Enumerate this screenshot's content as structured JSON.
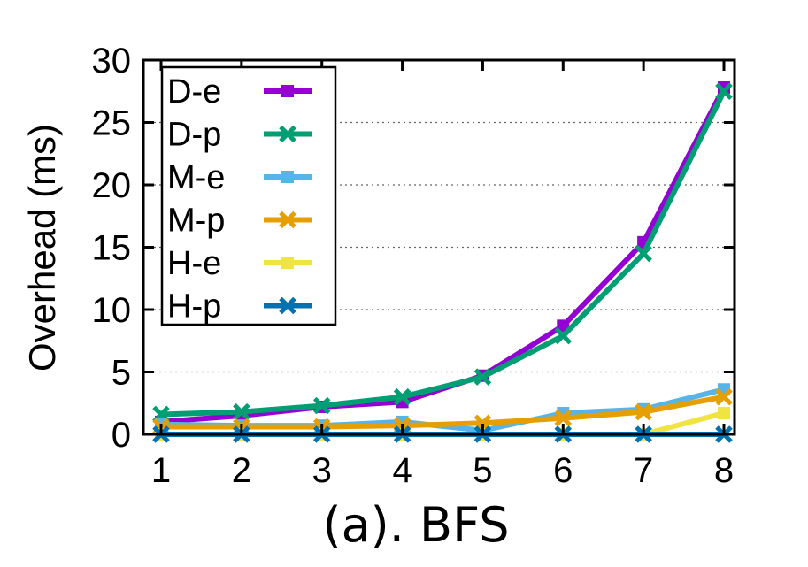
{
  "chart_data": {
    "type": "line",
    "title": "",
    "caption": "(a). BFS",
    "xlabel": "",
    "ylabel": "Overhead (ms)",
    "x": [
      1,
      2,
      3,
      4,
      5,
      6,
      7,
      8
    ],
    "xlim": [
      1,
      8
    ],
    "ylim": [
      0,
      30
    ],
    "yticks": [
      0,
      5,
      10,
      15,
      20,
      25,
      30
    ],
    "grid": "horizontal-dotted",
    "legend_position": "top-left",
    "series": [
      {
        "name": "D-e",
        "color": "#9400d3",
        "marker": "square",
        "values": [
          1.0,
          1.5,
          2.2,
          2.6,
          4.7,
          8.7,
          15.4,
          27.8
        ]
      },
      {
        "name": "D-p",
        "color": "#009e73",
        "marker": "x",
        "values": [
          1.6,
          1.8,
          2.3,
          3.0,
          4.6,
          7.9,
          14.5,
          27.5
        ]
      },
      {
        "name": "M-e",
        "color": "#56b4e9",
        "marker": "square",
        "values": [
          0.8,
          0.7,
          0.7,
          1.0,
          0.3,
          1.7,
          2.0,
          3.6
        ]
      },
      {
        "name": "M-p",
        "color": "#e69f00",
        "marker": "x",
        "values": [
          0.6,
          0.6,
          0.6,
          0.7,
          0.9,
          1.3,
          1.8,
          3.0
        ]
      },
      {
        "name": "H-e",
        "color": "#f0e442",
        "marker": "square",
        "values": [
          0.0,
          0.0,
          0.0,
          0.0,
          0.0,
          0.0,
          0.0,
          1.7
        ]
      },
      {
        "name": "H-p",
        "color": "#0072b2",
        "marker": "x",
        "values": [
          0.0,
          0.0,
          0.0,
          0.0,
          0.0,
          0.0,
          0.0,
          0.0
        ]
      }
    ]
  }
}
